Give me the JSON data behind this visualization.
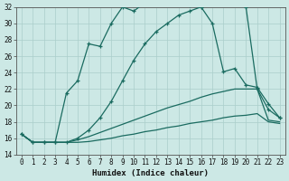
{
  "xlabel": "Humidex (Indice chaleur)",
  "bg_color": "#cce8e5",
  "grid_color": "#aaceca",
  "line_color": "#1a6b60",
  "xlim_min": -0.5,
  "xlim_max": 23.5,
  "ylim_min": 14,
  "ylim_max": 32,
  "xticks": [
    0,
    1,
    2,
    3,
    4,
    5,
    6,
    7,
    8,
    9,
    10,
    11,
    12,
    13,
    14,
    15,
    16,
    17,
    18,
    19,
    20,
    21,
    22,
    23
  ],
  "yticks": [
    14,
    16,
    18,
    20,
    22,
    24,
    26,
    28,
    30,
    32
  ],
  "curve_jagged": [
    16.5,
    15.5,
    15.5,
    15.5,
    21.5,
    23.0,
    27.5,
    27.2,
    30.0,
    32.0,
    31.5,
    32.5,
    32.8,
    32.3,
    32.5,
    32.2,
    32.0,
    30.0,
    24.1,
    24.5,
    22.5,
    22.2,
    20.2,
    18.5
  ],
  "curve_smooth": [
    16.5,
    15.5,
    15.5,
    15.5,
    15.5,
    16.0,
    17.0,
    18.5,
    20.5,
    23.0,
    25.5,
    27.5,
    29.0,
    30.0,
    31.0,
    31.5,
    32.0,
    32.5,
    32.5,
    32.5,
    32.0,
    22.0,
    19.5,
    18.5
  ],
  "line_upper": [
    16.5,
    15.5,
    15.5,
    15.5,
    15.5,
    15.8,
    16.2,
    16.7,
    17.2,
    17.7,
    18.2,
    18.7,
    19.2,
    19.7,
    20.1,
    20.5,
    21.0,
    21.4,
    21.7,
    22.0,
    22.0,
    22.0,
    18.2,
    18.0
  ],
  "line_lower": [
    16.5,
    15.5,
    15.5,
    15.5,
    15.5,
    15.5,
    15.6,
    15.8,
    16.0,
    16.3,
    16.5,
    16.8,
    17.0,
    17.3,
    17.5,
    17.8,
    18.0,
    18.2,
    18.5,
    18.7,
    18.8,
    19.0,
    18.0,
    17.8
  ]
}
